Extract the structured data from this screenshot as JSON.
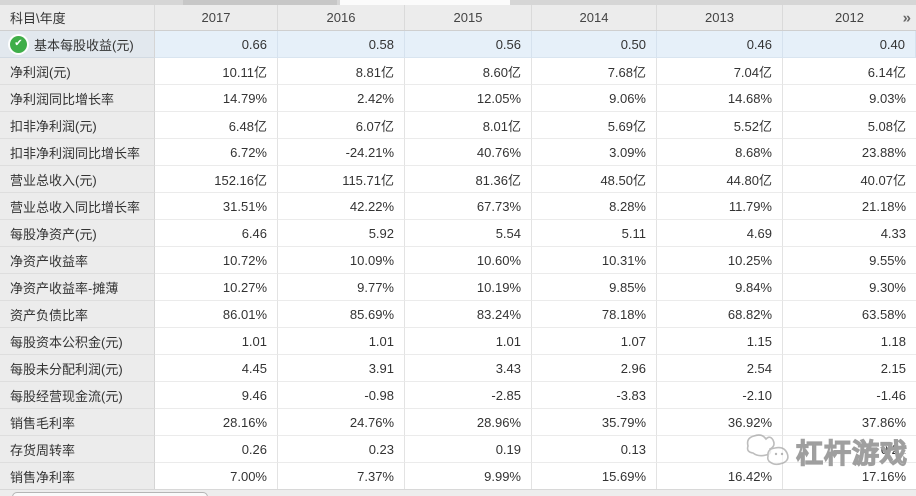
{
  "table": {
    "corner_label": "科目\\年度",
    "years": [
      "2017",
      "2016",
      "2015",
      "2014",
      "2013",
      "2012"
    ],
    "more_button": "»",
    "rows": [
      {
        "label": "基本每股收益(元)",
        "checked": true,
        "selected": true,
        "values": [
          "0.66",
          "0.58",
          "0.56",
          "0.50",
          "0.46",
          "0.40"
        ]
      },
      {
        "label": "净利润(元)",
        "checked": false,
        "selected": false,
        "values": [
          "10.11亿",
          "8.81亿",
          "8.60亿",
          "7.68亿",
          "7.04亿",
          "6.14亿"
        ]
      },
      {
        "label": "净利润同比增长率",
        "checked": false,
        "selected": false,
        "values": [
          "14.79%",
          "2.42%",
          "12.05%",
          "9.06%",
          "14.68%",
          "9.03%"
        ]
      },
      {
        "label": "扣非净利润(元)",
        "checked": false,
        "selected": false,
        "values": [
          "6.48亿",
          "6.07亿",
          "8.01亿",
          "5.69亿",
          "5.52亿",
          "5.08亿"
        ]
      },
      {
        "label": "扣非净利润同比增长率",
        "checked": false,
        "selected": false,
        "values": [
          "6.72%",
          "-24.21%",
          "40.76%",
          "3.09%",
          "8.68%",
          "23.88%"
        ]
      },
      {
        "label": "营业总收入(元)",
        "checked": false,
        "selected": false,
        "values": [
          "152.16亿",
          "115.71亿",
          "81.36亿",
          "48.50亿",
          "44.80亿",
          "40.07亿"
        ]
      },
      {
        "label": "营业总收入同比增长率",
        "checked": false,
        "selected": false,
        "values": [
          "31.51%",
          "42.22%",
          "67.73%",
          "8.28%",
          "11.79%",
          "21.18%"
        ]
      },
      {
        "label": "每股净资产(元)",
        "checked": false,
        "selected": false,
        "values": [
          "6.46",
          "5.92",
          "5.54",
          "5.11",
          "4.69",
          "4.33"
        ]
      },
      {
        "label": "净资产收益率",
        "checked": false,
        "selected": false,
        "values": [
          "10.72%",
          "10.09%",
          "10.60%",
          "10.31%",
          "10.25%",
          "9.55%"
        ]
      },
      {
        "label": "净资产收益率-摊薄",
        "checked": false,
        "selected": false,
        "values": [
          "10.27%",
          "9.77%",
          "10.19%",
          "9.85%",
          "9.84%",
          "9.30%"
        ]
      },
      {
        "label": "资产负债比率",
        "checked": false,
        "selected": false,
        "values": [
          "86.01%",
          "85.69%",
          "83.24%",
          "78.18%",
          "68.82%",
          "63.58%"
        ]
      },
      {
        "label": "每股资本公积金(元)",
        "checked": false,
        "selected": false,
        "values": [
          "1.01",
          "1.01",
          "1.01",
          "1.07",
          "1.15",
          "1.18"
        ]
      },
      {
        "label": "每股未分配利润(元)",
        "checked": false,
        "selected": false,
        "values": [
          "4.45",
          "3.91",
          "3.43",
          "2.96",
          "2.54",
          "2.15"
        ]
      },
      {
        "label": "每股经营现金流(元)",
        "checked": false,
        "selected": false,
        "values": [
          "9.46",
          "-0.98",
          "-2.85",
          "-3.83",
          "-2.10",
          "-1.46"
        ]
      },
      {
        "label": "销售毛利率",
        "checked": false,
        "selected": false,
        "values": [
          "28.16%",
          "24.76%",
          "28.96%",
          "35.79%",
          "36.92%",
          "37.86%"
        ]
      },
      {
        "label": "存货周转率",
        "checked": false,
        "selected": false,
        "values": [
          "0.26",
          "0.23",
          "0.19",
          "0.13",
          "",
          "0.21"
        ]
      },
      {
        "label": "销售净利率",
        "checked": false,
        "selected": false,
        "values": [
          "7.00%",
          "7.37%",
          "9.99%",
          "15.69%",
          "16.42%",
          "17.16%"
        ]
      }
    ]
  },
  "watermark": {
    "text": "杠杆游戏"
  },
  "colors": {
    "header_bg": "#ececec",
    "label_column_bg": "#ececec",
    "selected_row_bg": "#e6f0f9",
    "check_green": "#3fae49",
    "grid_line": "#e3e3e3"
  }
}
